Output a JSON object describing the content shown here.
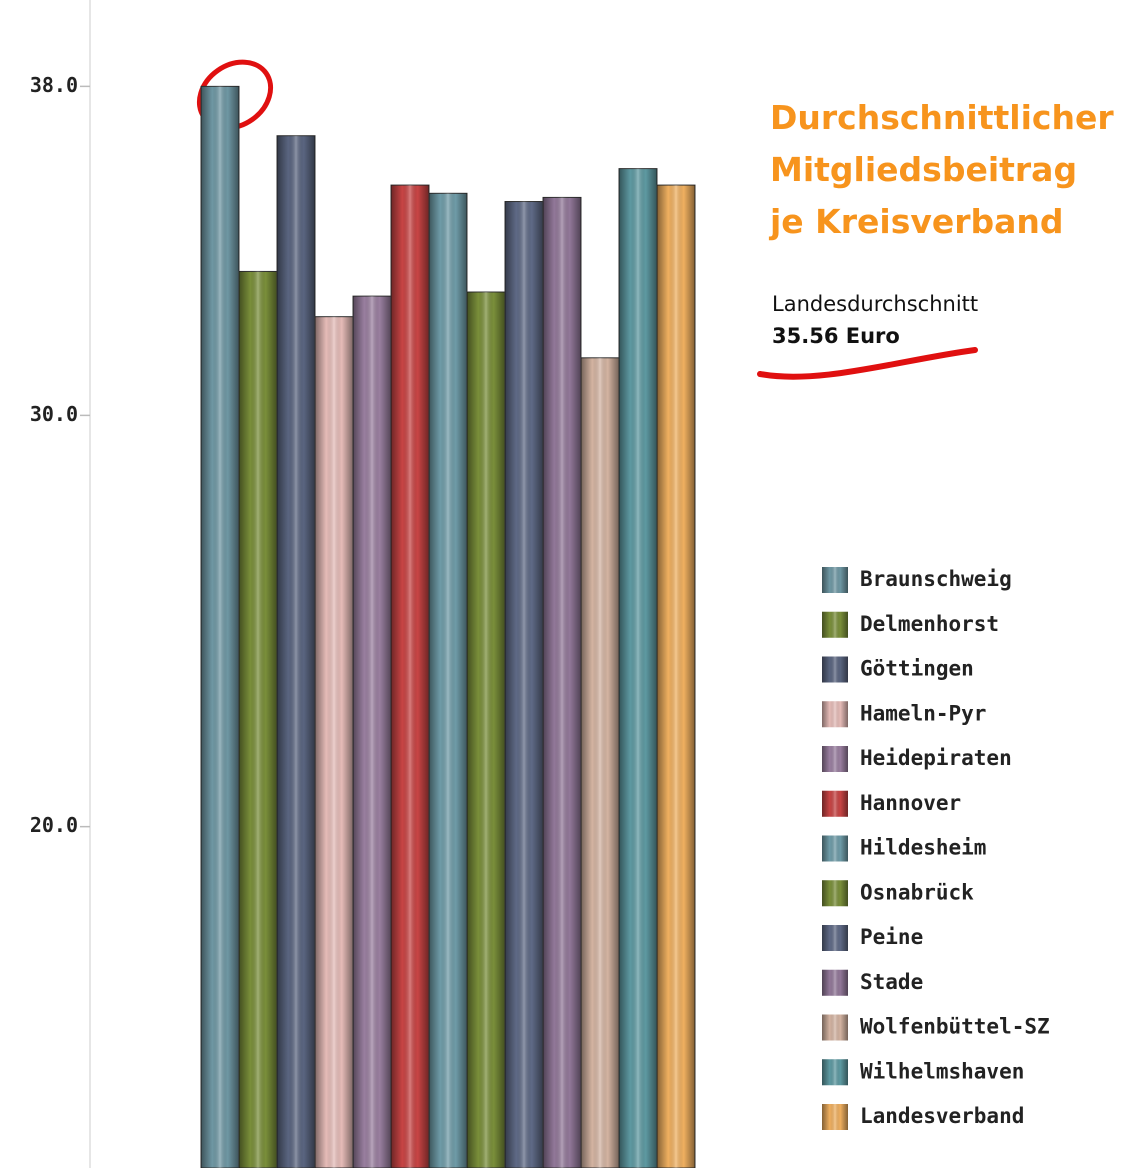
{
  "chart_data": {
    "type": "bar",
    "title": "Durchschnittlicher Mitgliedsbeitrag je Kreisverband",
    "annotations": [
      "Landesdurchschnitt",
      "35.56 Euro"
    ],
    "categories": [
      "Braunschweig",
      "Delmenhorst",
      "Göttingen",
      "Hameln-Pyr",
      "Heidepiraten",
      "Hannover",
      "Hildesheim",
      "Osnabrück",
      "Peine",
      "Stade",
      "Wolfenbüttel-SZ",
      "Wilhelmshaven",
      "Landesverband"
    ],
    "values": [
      38.0,
      33.5,
      36.8,
      32.4,
      32.9,
      35.6,
      35.4,
      33.0,
      35.2,
      35.3,
      31.4,
      36.0,
      35.6
    ],
    "colors": [
      "#6f98a4",
      "#7a8f3a",
      "#5a6580",
      "#e6bcb8",
      "#9a7fa0",
      "#c84444",
      "#6f9ca8",
      "#7a8f3a",
      "#5f6a86",
      "#927899",
      "#d4b4a2",
      "#5e9aa2",
      "#f0b060"
    ],
    "ylim": [
      11.7,
      40.1
    ],
    "yticks": [
      {
        "value": 20,
        "label": "20.0"
      },
      {
        "value": 30,
        "label": "30.0"
      },
      {
        "value": 38,
        "label": "38.0"
      }
    ],
    "legend": "right"
  }
}
